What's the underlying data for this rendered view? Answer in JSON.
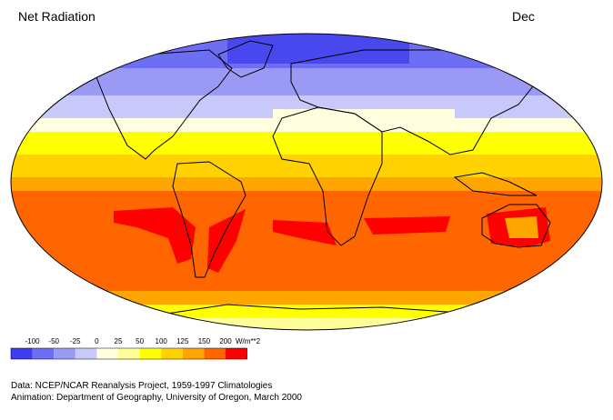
{
  "title": "Net Radiation",
  "month": "Dec",
  "legend": {
    "breaks": [
      -100,
      -50,
      -25,
      0,
      25,
      50,
      100,
      125,
      150,
      200
    ],
    "unit": "W/m**2",
    "colors": [
      "#3c3cf0",
      "#6e6ef5",
      "#9a9af5",
      "#c8c8fa",
      "#ffffe0",
      "#ffff99",
      "#ffff00",
      "#ffd200",
      "#ffa500",
      "#ff6600",
      "#ff0000"
    ]
  },
  "credits": [
    "Data:  NCEP/NCAR Reanalysis Project, 1959-1997 Climatologies",
    "Animation:  Department of Geography, University of Oregon, March 2000"
  ]
}
